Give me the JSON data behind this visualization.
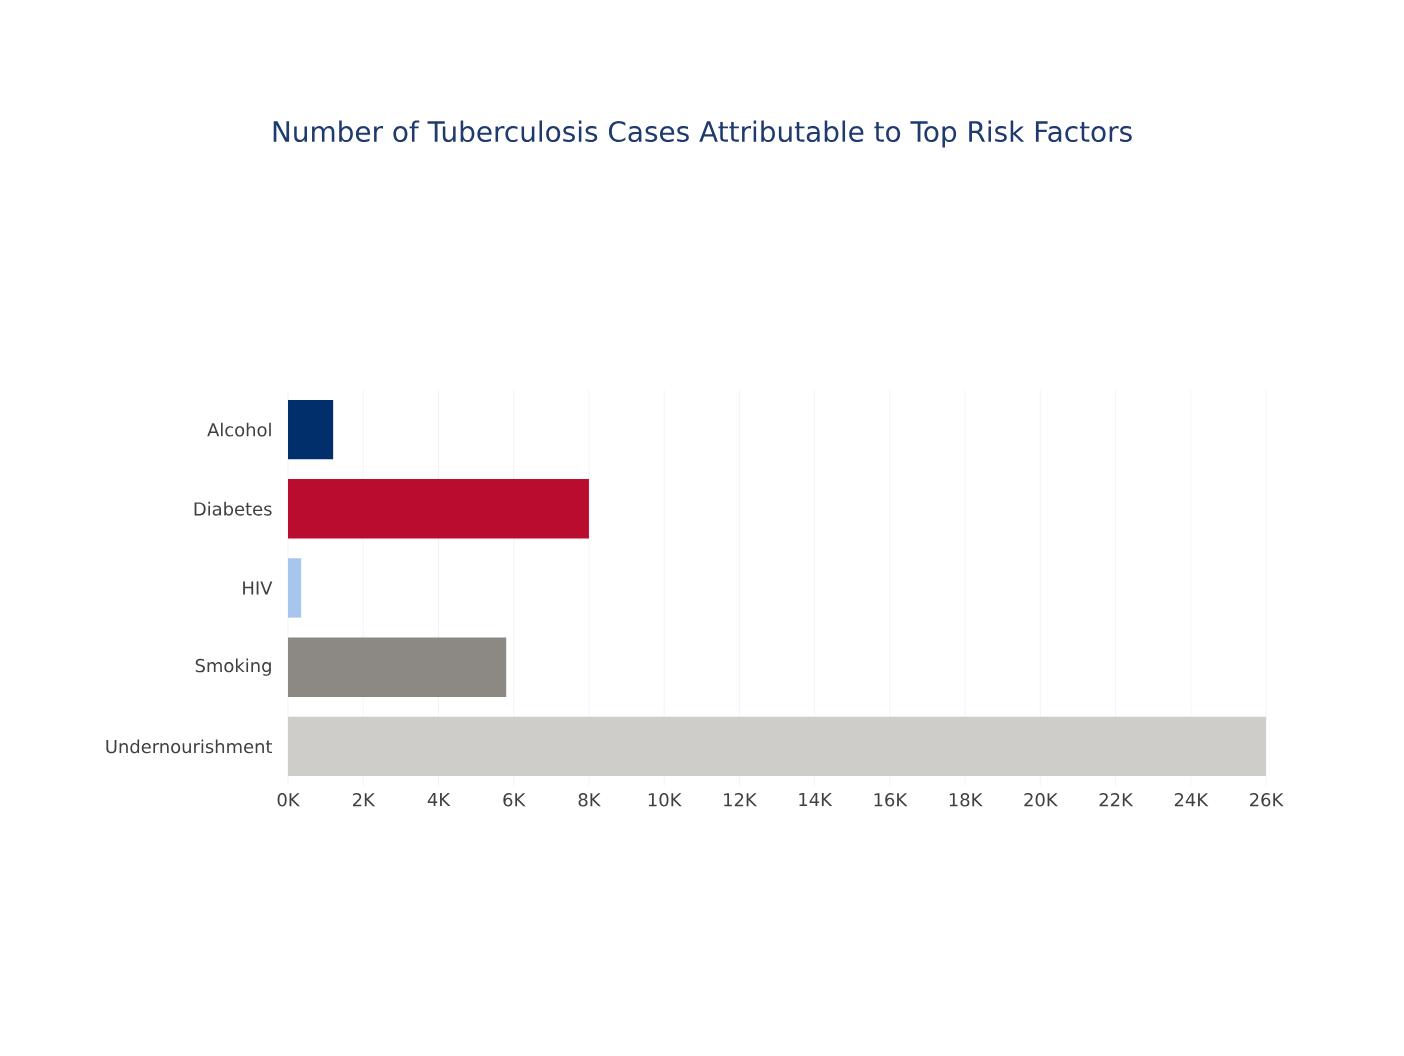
{
  "chart_data": {
    "type": "bar",
    "orientation": "horizontal",
    "title": "Number of Tuberculosis Cases Attributable to Top Risk Factors",
    "categories": [
      "Alcohol",
      "Diabetes",
      "HIV",
      "Smoking",
      "Undernourishment"
    ],
    "values": [
      1200,
      8000,
      350,
      5800,
      26000
    ],
    "colors": [
      "#002f6c",
      "#ba0c2f",
      "#a7c6ed",
      "#8c8985",
      "#cfcdc9"
    ],
    "xlim": [
      0,
      26000
    ],
    "xticks": [
      {
        "value": 0,
        "label": "0K"
      },
      {
        "value": 2000,
        "label": "2K"
      },
      {
        "value": 4000,
        "label": "4K"
      },
      {
        "value": 6000,
        "label": "6K"
      },
      {
        "value": 8000,
        "label": "8K"
      },
      {
        "value": 10000,
        "label": "10K"
      },
      {
        "value": 12000,
        "label": "12K"
      },
      {
        "value": 14000,
        "label": "14K"
      },
      {
        "value": 16000,
        "label": "16K"
      },
      {
        "value": 18000,
        "label": "18K"
      },
      {
        "value": 20000,
        "label": "20K"
      },
      {
        "value": 22000,
        "label": "22K"
      },
      {
        "value": 24000,
        "label": "24K"
      },
      {
        "value": 26000,
        "label": "26K"
      }
    ],
    "grid": "x"
  }
}
